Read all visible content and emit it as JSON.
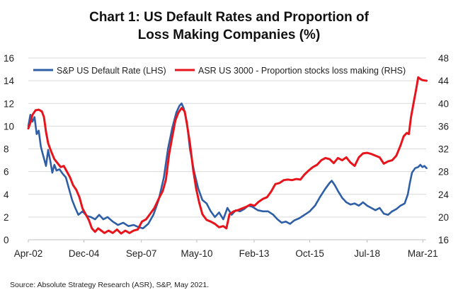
{
  "title_line1": "Chart 1: US Default Rates and Proportion of",
  "title_line2": "Loss Making Companies (%)",
  "source": "Source: Absolute Strategy Research (ASR), S&P, May 2021.",
  "chart_data": {
    "type": "line",
    "title": "Chart 1: US Default Rates and Proportion of Loss Making Companies (%)",
    "xlabel": "",
    "ylabel_left": "",
    "ylabel_right": "",
    "x_range": [
      2002.25,
      2021.33
    ],
    "x_tick_labels": [
      "Apr-02",
      "Dec-04",
      "Sep-07",
      "May-10",
      "Feb-13",
      "Oct-15",
      "Jul-18",
      "Mar-21"
    ],
    "x_tick_values": [
      2002.25,
      2004.92,
      2007.67,
      2010.33,
      2013.08,
      2015.75,
      2018.5,
      2021.17
    ],
    "ylim_left": [
      0,
      16
    ],
    "yticks_left": [
      0,
      2,
      4,
      6,
      8,
      10,
      12,
      14,
      16
    ],
    "ylim_right": [
      16,
      48
    ],
    "yticks_right": [
      16,
      20,
      24,
      28,
      32,
      36,
      40,
      44,
      48
    ],
    "grid": "horizontal",
    "legend_position": "top-left",
    "series": [
      {
        "name": "S&P US Default Rate (LHS)",
        "axis": "left",
        "color": "#2e5fa6",
        "points": [
          [
            2002.25,
            10.0
          ],
          [
            2002.35,
            11.0
          ],
          [
            2002.45,
            10.4
          ],
          [
            2002.55,
            10.8
          ],
          [
            2002.65,
            9.3
          ],
          [
            2002.75,
            9.6
          ],
          [
            2002.85,
            8.2
          ],
          [
            2002.95,
            7.5
          ],
          [
            2003.1,
            6.5
          ],
          [
            2003.2,
            7.9
          ],
          [
            2003.3,
            7.0
          ],
          [
            2003.4,
            5.9
          ],
          [
            2003.5,
            6.6
          ],
          [
            2003.6,
            6.1
          ],
          [
            2003.75,
            6.2
          ],
          [
            2003.9,
            5.8
          ],
          [
            2004.05,
            5.5
          ],
          [
            2004.2,
            4.5
          ],
          [
            2004.35,
            3.5
          ],
          [
            2004.5,
            2.8
          ],
          [
            2004.65,
            2.2
          ],
          [
            2004.85,
            2.5
          ],
          [
            2005.05,
            2.1
          ],
          [
            2005.25,
            2.0
          ],
          [
            2005.45,
            1.8
          ],
          [
            2005.65,
            2.2
          ],
          [
            2005.85,
            1.8
          ],
          [
            2006.05,
            2.0
          ],
          [
            2006.3,
            1.6
          ],
          [
            2006.55,
            1.3
          ],
          [
            2006.8,
            1.5
          ],
          [
            2007.05,
            1.2
          ],
          [
            2007.3,
            1.3
          ],
          [
            2007.55,
            1.1
          ],
          [
            2007.75,
            1.0
          ],
          [
            2008.0,
            1.4
          ],
          [
            2008.25,
            2.2
          ],
          [
            2008.5,
            3.5
          ],
          [
            2008.75,
            5.5
          ],
          [
            2008.95,
            8.0
          ],
          [
            2009.15,
            9.8
          ],
          [
            2009.35,
            11.2
          ],
          [
            2009.5,
            11.8
          ],
          [
            2009.6,
            12.0
          ],
          [
            2009.7,
            11.6
          ],
          [
            2009.85,
            10.4
          ],
          [
            2010.0,
            8.0
          ],
          [
            2010.2,
            6.0
          ],
          [
            2010.4,
            4.5
          ],
          [
            2010.6,
            3.5
          ],
          [
            2010.8,
            3.2
          ],
          [
            2011.0,
            2.5
          ],
          [
            2011.2,
            2.0
          ],
          [
            2011.4,
            2.4
          ],
          [
            2011.6,
            1.8
          ],
          [
            2011.8,
            2.8
          ],
          [
            2012.0,
            2.2
          ],
          [
            2012.2,
            2.6
          ],
          [
            2012.4,
            2.5
          ],
          [
            2012.6,
            2.7
          ],
          [
            2012.8,
            3.0
          ],
          [
            2013.0,
            2.9
          ],
          [
            2013.25,
            2.6
          ],
          [
            2013.5,
            2.5
          ],
          [
            2013.75,
            2.5
          ],
          [
            2014.0,
            2.2
          ],
          [
            2014.2,
            1.8
          ],
          [
            2014.4,
            1.5
          ],
          [
            2014.6,
            1.6
          ],
          [
            2014.8,
            1.4
          ],
          [
            2015.0,
            1.7
          ],
          [
            2015.25,
            1.9
          ],
          [
            2015.5,
            2.2
          ],
          [
            2015.75,
            2.5
          ],
          [
            2016.0,
            3.0
          ],
          [
            2016.25,
            3.8
          ],
          [
            2016.5,
            4.5
          ],
          [
            2016.7,
            5.0
          ],
          [
            2016.8,
            5.2
          ],
          [
            2016.95,
            4.8
          ],
          [
            2017.1,
            4.3
          ],
          [
            2017.3,
            3.7
          ],
          [
            2017.5,
            3.3
          ],
          [
            2017.7,
            3.1
          ],
          [
            2017.9,
            3.2
          ],
          [
            2018.1,
            3.0
          ],
          [
            2018.3,
            3.3
          ],
          [
            2018.5,
            3.0
          ],
          [
            2018.7,
            2.8
          ],
          [
            2018.9,
            2.6
          ],
          [
            2019.1,
            2.8
          ],
          [
            2019.3,
            2.3
          ],
          [
            2019.5,
            2.2
          ],
          [
            2019.7,
            2.5
          ],
          [
            2019.9,
            2.7
          ],
          [
            2020.1,
            3.0
          ],
          [
            2020.3,
            3.2
          ],
          [
            2020.45,
            4.0
          ],
          [
            2020.55,
            5.0
          ],
          [
            2020.65,
            5.9
          ],
          [
            2020.8,
            6.3
          ],
          [
            2020.95,
            6.4
          ],
          [
            2021.05,
            6.6
          ],
          [
            2021.15,
            6.4
          ],
          [
            2021.25,
            6.5
          ],
          [
            2021.35,
            6.3
          ]
        ]
      },
      {
        "name": "ASR US 3000 - Proportion stocks loss making (RHS)",
        "axis": "right",
        "color": "#e8141c",
        "points": [
          [
            2002.25,
            35.6
          ],
          [
            2002.35,
            36.6
          ],
          [
            2002.45,
            38.0
          ],
          [
            2002.6,
            38.8
          ],
          [
            2002.75,
            38.9
          ],
          [
            2002.9,
            38.6
          ],
          [
            2003.0,
            37.6
          ],
          [
            2003.1,
            35.0
          ],
          [
            2003.2,
            33.0
          ],
          [
            2003.35,
            31.5
          ],
          [
            2003.5,
            30.2
          ],
          [
            2003.65,
            29.5
          ],
          [
            2003.8,
            28.8
          ],
          [
            2003.95,
            29.0
          ],
          [
            2004.1,
            28.0
          ],
          [
            2004.25,
            27.0
          ],
          [
            2004.4,
            25.6
          ],
          [
            2004.55,
            24.8
          ],
          [
            2004.7,
            23.5
          ],
          [
            2004.85,
            21.5
          ],
          [
            2005.0,
            20.5
          ],
          [
            2005.15,
            19.5
          ],
          [
            2005.3,
            18.0
          ],
          [
            2005.45,
            17.4
          ],
          [
            2005.6,
            18.0
          ],
          [
            2005.75,
            17.6
          ],
          [
            2005.9,
            17.2
          ],
          [
            2006.1,
            17.6
          ],
          [
            2006.3,
            17.2
          ],
          [
            2006.5,
            17.8
          ],
          [
            2006.7,
            17.1
          ],
          [
            2006.9,
            17.6
          ],
          [
            2007.1,
            17.2
          ],
          [
            2007.3,
            17.6
          ],
          [
            2007.5,
            17.8
          ],
          [
            2007.7,
            19.2
          ],
          [
            2007.9,
            19.6
          ],
          [
            2008.1,
            20.6
          ],
          [
            2008.3,
            21.6
          ],
          [
            2008.5,
            23.2
          ],
          [
            2008.7,
            24.6
          ],
          [
            2008.85,
            26.6
          ],
          [
            2009.0,
            31.0
          ],
          [
            2009.15,
            34.0
          ],
          [
            2009.3,
            37.0
          ],
          [
            2009.45,
            38.4
          ],
          [
            2009.6,
            39.2
          ],
          [
            2009.75,
            38.6
          ],
          [
            2009.85,
            36.5
          ],
          [
            2010.0,
            33.0
          ],
          [
            2010.15,
            28.5
          ],
          [
            2010.3,
            25.0
          ],
          [
            2010.45,
            22.5
          ],
          [
            2010.6,
            20.5
          ],
          [
            2010.8,
            19.5
          ],
          [
            2011.0,
            19.2
          ],
          [
            2011.2,
            18.8
          ],
          [
            2011.4,
            18.2
          ],
          [
            2011.6,
            18.4
          ],
          [
            2011.75,
            18.0
          ],
          [
            2011.9,
            20.5
          ],
          [
            2012.1,
            21.0
          ],
          [
            2012.3,
            21.2
          ],
          [
            2012.5,
            21.5
          ],
          [
            2012.7,
            21.8
          ],
          [
            2012.9,
            22.2
          ],
          [
            2013.1,
            22.0
          ],
          [
            2013.3,
            22.7
          ],
          [
            2013.5,
            23.2
          ],
          [
            2013.7,
            23.5
          ],
          [
            2013.9,
            24.5
          ],
          [
            2014.1,
            25.8
          ],
          [
            2014.3,
            26.0
          ],
          [
            2014.5,
            26.5
          ],
          [
            2014.7,
            26.6
          ],
          [
            2014.9,
            26.5
          ],
          [
            2015.1,
            26.7
          ],
          [
            2015.3,
            26.6
          ],
          [
            2015.5,
            27.5
          ],
          [
            2015.7,
            28.2
          ],
          [
            2015.9,
            28.8
          ],
          [
            2016.1,
            29.2
          ],
          [
            2016.3,
            30.0
          ],
          [
            2016.5,
            30.4
          ],
          [
            2016.7,
            30.2
          ],
          [
            2016.9,
            29.5
          ],
          [
            2017.1,
            30.4
          ],
          [
            2017.3,
            30.0
          ],
          [
            2017.5,
            30.5
          ],
          [
            2017.7,
            29.6
          ],
          [
            2017.9,
            29.0
          ],
          [
            2018.1,
            30.5
          ],
          [
            2018.3,
            31.2
          ],
          [
            2018.5,
            31.3
          ],
          [
            2018.7,
            31.1
          ],
          [
            2018.9,
            30.8
          ],
          [
            2019.1,
            30.5
          ],
          [
            2019.3,
            29.4
          ],
          [
            2019.5,
            29.8
          ],
          [
            2019.7,
            30.0
          ],
          [
            2019.9,
            30.8
          ],
          [
            2020.1,
            32.6
          ],
          [
            2020.25,
            34.2
          ],
          [
            2020.4,
            34.8
          ],
          [
            2020.5,
            34.6
          ],
          [
            2020.6,
            37.5
          ],
          [
            2020.75,
            40.5
          ],
          [
            2020.85,
            42.5
          ],
          [
            2020.95,
            44.6
          ],
          [
            2021.05,
            44.3
          ],
          [
            2021.15,
            44.1
          ],
          [
            2021.35,
            44.0
          ]
        ]
      }
    ]
  }
}
